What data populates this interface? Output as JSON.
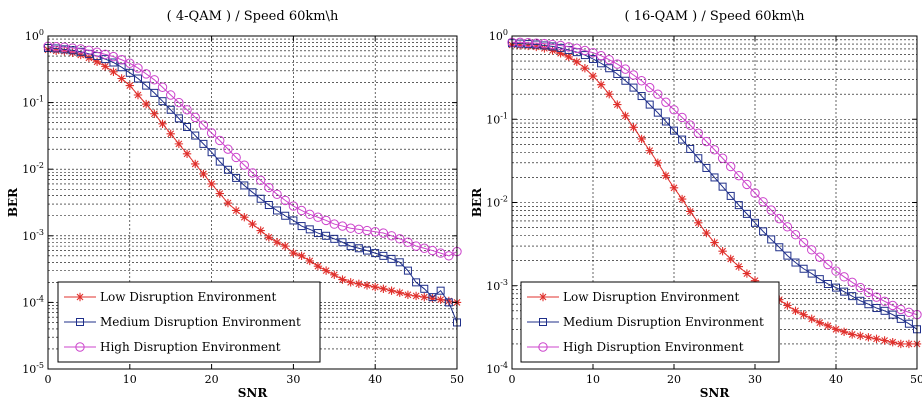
{
  "top_strip_text": "",
  "chart_data": [
    {
      "type": "line",
      "title": "( 4-QAM ) / Speed 60km\\h",
      "xlabel": "SNR",
      "ylabel": "BER",
      "xlim": [
        0,
        50
      ],
      "ylim": [
        1e-05,
        1
      ],
      "yscale": "log",
      "grid": true,
      "legend_position": "bottom-left",
      "x_ticks": [
        "0",
        "10",
        "20",
        "30",
        "40",
        "50"
      ],
      "y_ticks": [
        "10^0",
        "10^-1",
        "10^-2",
        "10^-3",
        "10^-4",
        "10^-5"
      ],
      "x": [
        0,
        1,
        2,
        3,
        4,
        5,
        6,
        7,
        8,
        9,
        10,
        11,
        12,
        13,
        14,
        15,
        16,
        17,
        18,
        19,
        20,
        21,
        22,
        23,
        24,
        25,
        26,
        27,
        28,
        29,
        30,
        31,
        32,
        33,
        34,
        35,
        36,
        37,
        38,
        39,
        40,
        41,
        42,
        43,
        44,
        45,
        46,
        47,
        48,
        49,
        50
      ],
      "series": [
        {
          "name": "Low Disruption Environment",
          "color": "#e0302c",
          "marker": "star",
          "values": [
            0.62,
            0.6,
            0.59,
            0.56,
            0.52,
            0.47,
            0.41,
            0.35,
            0.29,
            0.23,
            0.18,
            0.13,
            0.095,
            0.068,
            0.048,
            0.034,
            0.024,
            0.017,
            0.012,
            0.0085,
            0.006,
            0.0043,
            0.0031,
            0.0024,
            0.0019,
            0.0015,
            0.0012,
            0.00095,
            0.0008,
            0.0007,
            0.00055,
            0.0005,
            0.00042,
            0.00035,
            0.0003,
            0.00026,
            0.00022,
            0.0002,
            0.00019,
            0.00018,
            0.00017,
            0.00016,
            0.00015,
            0.00014,
            0.00013,
            0.000125,
            0.00012,
            0.000115,
            0.00011,
            0.000105,
            0.0001
          ]
        },
        {
          "name": "Medium Disruption Environment",
          "color": "#1f2f8a",
          "marker": "square",
          "values": [
            0.66,
            0.65,
            0.63,
            0.61,
            0.58,
            0.54,
            0.5,
            0.45,
            0.4,
            0.34,
            0.28,
            0.23,
            0.18,
            0.14,
            0.105,
            0.078,
            0.058,
            0.043,
            0.032,
            0.024,
            0.018,
            0.013,
            0.0098,
            0.0074,
            0.0057,
            0.0045,
            0.0036,
            0.0029,
            0.0024,
            0.002,
            0.0017,
            0.0014,
            0.00125,
            0.0011,
            0.001,
            0.0009,
            0.0008,
            0.0007,
            0.00065,
            0.0006,
            0.00055,
            0.0005,
            0.00045,
            0.0004,
            0.0003,
            0.0002,
            0.00016,
            0.00012,
            0.00015,
            0.0001,
            5e-05
          ]
        },
        {
          "name": "High Disruption Environment",
          "color": "#cc44cc",
          "marker": "circle",
          "values": [
            0.7,
            0.69,
            0.68,
            0.66,
            0.64,
            0.61,
            0.57,
            0.53,
            0.49,
            0.44,
            0.39,
            0.33,
            0.27,
            0.22,
            0.17,
            0.13,
            0.1,
            0.078,
            0.06,
            0.046,
            0.035,
            0.027,
            0.02,
            0.015,
            0.0115,
            0.0088,
            0.0068,
            0.0053,
            0.0042,
            0.0034,
            0.0028,
            0.0024,
            0.0021,
            0.0019,
            0.0017,
            0.0015,
            0.0014,
            0.0013,
            0.00125,
            0.0012,
            0.00115,
            0.0011,
            0.001,
            0.0009,
            0.0008,
            0.0007,
            0.00065,
            0.0006,
            0.00055,
            0.0005,
            0.00058
          ]
        }
      ]
    },
    {
      "type": "line",
      "title": "( 16-QAM ) / Speed 60km\\h",
      "xlabel": "SNR",
      "ylabel": "BER",
      "xlim": [
        0,
        50
      ],
      "ylim": [
        0.0001,
        1
      ],
      "yscale": "log",
      "grid": true,
      "legend_position": "bottom-left",
      "x_ticks": [
        "0",
        "10",
        "20",
        "30",
        "40",
        "50"
      ],
      "y_ticks": [
        "10^0",
        "10^-1",
        "10^-2",
        "10^-3",
        "10^-4"
      ],
      "x": [
        0,
        1,
        2,
        3,
        4,
        5,
        6,
        7,
        8,
        9,
        10,
        11,
        12,
        13,
        14,
        15,
        16,
        17,
        18,
        19,
        20,
        21,
        22,
        23,
        24,
        25,
        26,
        27,
        28,
        29,
        30,
        31,
        32,
        33,
        34,
        35,
        36,
        37,
        38,
        39,
        40,
        41,
        42,
        43,
        44,
        45,
        46,
        47,
        48,
        49,
        50
      ],
      "series": [
        {
          "name": "Low Disruption Environment",
          "color": "#e0302c",
          "marker": "star",
          "values": [
            0.78,
            0.77,
            0.76,
            0.74,
            0.71,
            0.67,
            0.62,
            0.56,
            0.49,
            0.41,
            0.33,
            0.26,
            0.2,
            0.15,
            0.11,
            0.08,
            0.058,
            0.042,
            0.03,
            0.021,
            0.015,
            0.011,
            0.0078,
            0.0057,
            0.0043,
            0.0033,
            0.0026,
            0.0021,
            0.0017,
            0.0014,
            0.00115,
            0.00095,
            0.0008,
            0.00068,
            0.00058,
            0.0005,
            0.00045,
            0.0004,
            0.00036,
            0.00033,
            0.0003,
            0.00028,
            0.00026,
            0.00025,
            0.00024,
            0.00023,
            0.00022,
            0.00021,
            0.0002,
            0.0002,
            0.0002
          ]
        },
        {
          "name": "Medium Disruption Environment",
          "color": "#1f2f8a",
          "marker": "square",
          "values": [
            0.82,
            0.81,
            0.8,
            0.79,
            0.77,
            0.75,
            0.72,
            0.68,
            0.64,
            0.59,
            0.53,
            0.47,
            0.41,
            0.35,
            0.29,
            0.24,
            0.19,
            0.15,
            0.12,
            0.094,
            0.073,
            0.057,
            0.044,
            0.034,
            0.026,
            0.02,
            0.0155,
            0.012,
            0.0093,
            0.0073,
            0.0057,
            0.0045,
            0.0036,
            0.0029,
            0.0023,
            0.0019,
            0.0016,
            0.0014,
            0.0012,
            0.00105,
            0.00095,
            0.00085,
            0.00075,
            0.00066,
            0.0006,
            0.00054,
            0.0005,
            0.00045,
            0.0004,
            0.00035,
            0.0003
          ]
        },
        {
          "name": "High Disruption Environment",
          "color": "#cc44cc",
          "marker": "circle",
          "values": [
            0.84,
            0.84,
            0.83,
            0.82,
            0.81,
            0.79,
            0.77,
            0.74,
            0.71,
            0.67,
            0.63,
            0.58,
            0.52,
            0.46,
            0.4,
            0.34,
            0.29,
            0.24,
            0.2,
            0.16,
            0.13,
            0.105,
            0.085,
            0.068,
            0.054,
            0.043,
            0.034,
            0.027,
            0.021,
            0.0165,
            0.013,
            0.0102,
            0.0081,
            0.0064,
            0.0051,
            0.0041,
            0.0033,
            0.0027,
            0.0022,
            0.0018,
            0.0015,
            0.00128,
            0.0011,
            0.00095,
            0.00083,
            0.00073,
            0.00065,
            0.00058,
            0.00052,
            0.00048,
            0.00045
          ]
        }
      ]
    }
  ]
}
